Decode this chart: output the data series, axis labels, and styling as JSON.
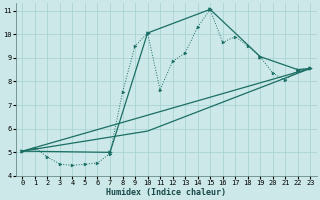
{
  "xlabel": "Humidex (Indice chaleur)",
  "bg_color": "#cce8e8",
  "line_color": "#1a6e64",
  "grid_color": "#aad4d4",
  "xlim": [
    -0.5,
    23.5
  ],
  "ylim": [
    4,
    11.3
  ],
  "xticks": [
    0,
    1,
    2,
    3,
    4,
    5,
    6,
    7,
    8,
    9,
    10,
    11,
    12,
    13,
    14,
    15,
    16,
    17,
    18,
    19,
    20,
    21,
    22,
    23
  ],
  "yticks": [
    4,
    5,
    6,
    7,
    8,
    9,
    10,
    11
  ],
  "series1_x": [
    0,
    1,
    2,
    3,
    4,
    5,
    6,
    7,
    8,
    9,
    10,
    11,
    12,
    13,
    14,
    15,
    16,
    17,
    18,
    19,
    20,
    21,
    22,
    23
  ],
  "series1_y": [
    5.05,
    5.2,
    4.8,
    4.5,
    4.45,
    4.5,
    4.55,
    4.95,
    7.55,
    9.5,
    10.05,
    7.65,
    8.85,
    9.2,
    10.3,
    11.05,
    9.65,
    9.9,
    9.5,
    9.05,
    8.35,
    8.05,
    8.5,
    8.55
  ],
  "series2_x": [
    0,
    7,
    10,
    15,
    19,
    22,
    23
  ],
  "series2_y": [
    5.05,
    5.0,
    10.05,
    11.05,
    9.05,
    8.5,
    8.55
  ],
  "series3_x": [
    0,
    23
  ],
  "series3_y": [
    5.05,
    8.55
  ],
  "series4_x": [
    0,
    10,
    23
  ],
  "series4_y": [
    5.05,
    5.9,
    8.55
  ]
}
